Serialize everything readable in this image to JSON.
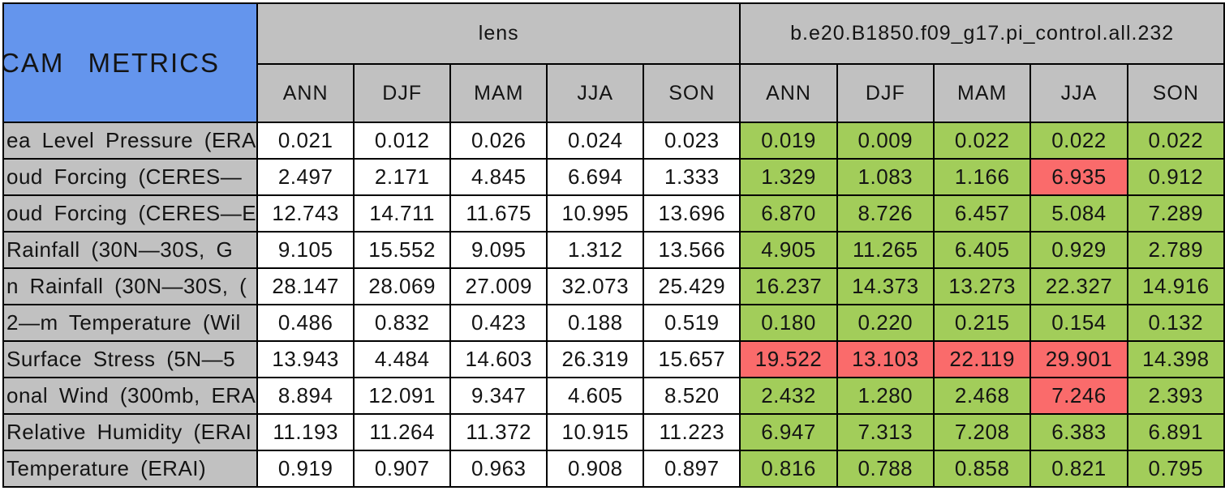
{
  "title": "CAM METRICS",
  "colors": {
    "header_blue": "#6495ED",
    "header_gray": "#C1C1C1",
    "better_green": "#A2CD5A",
    "worse_red": "#FA6B6B",
    "border_black": "#000000",
    "cell_white": "#FFFFFF"
  },
  "chart_data": {
    "type": "table",
    "title": "CAM METRICS",
    "column_groups": [
      "lens",
      "b.e20.B1850.f09_g17.pi_control.all.232"
    ],
    "season_columns": [
      "ANN",
      "DJF",
      "MAM",
      "JJA",
      "SON"
    ],
    "cell_color_meaning": {
      "green": "better than lens",
      "red": "worse than lens"
    },
    "rows": [
      {
        "label": "ea Level Pressure (ERA",
        "lens": [
          "0.021",
          "0.012",
          "0.026",
          "0.024",
          "0.023"
        ],
        "control": [
          "0.019",
          "0.009",
          "0.022",
          "0.022",
          "0.022"
        ],
        "control_status": [
          "better",
          "better",
          "better",
          "better",
          "better"
        ]
      },
      {
        "label": "oud Forcing (CERES—",
        "lens": [
          "2.497",
          "2.171",
          "4.845",
          "6.694",
          "1.333"
        ],
        "control": [
          "1.329",
          "1.083",
          "1.166",
          "6.935",
          "0.912"
        ],
        "control_status": [
          "better",
          "better",
          "better",
          "worse",
          "better"
        ]
      },
      {
        "label": "oud Forcing (CERES—E",
        "lens": [
          "12.743",
          "14.711",
          "11.675",
          "10.995",
          "13.696"
        ],
        "control": [
          "6.870",
          "8.726",
          "6.457",
          "5.084",
          "7.289"
        ],
        "control_status": [
          "better",
          "better",
          "better",
          "better",
          "better"
        ]
      },
      {
        "label": "Rainfall (30N—30S, G",
        "lens": [
          "9.105",
          "15.552",
          "9.095",
          "1.312",
          "13.566"
        ],
        "control": [
          "4.905",
          "11.265",
          "6.405",
          "0.929",
          "2.789"
        ],
        "control_status": [
          "better",
          "better",
          "better",
          "better",
          "better"
        ]
      },
      {
        "label": "n Rainfall (30N—30S, (",
        "lens": [
          "28.147",
          "28.069",
          "27.009",
          "32.073",
          "25.429"
        ],
        "control": [
          "16.237",
          "14.373",
          "13.273",
          "22.327",
          "14.916"
        ],
        "control_status": [
          "better",
          "better",
          "better",
          "better",
          "better"
        ]
      },
      {
        "label": "2—m Temperature (Wil",
        "lens": [
          "0.486",
          "0.832",
          "0.423",
          "0.188",
          "0.519"
        ],
        "control": [
          "0.180",
          "0.220",
          "0.215",
          "0.154",
          "0.132"
        ],
        "control_status": [
          "better",
          "better",
          "better",
          "better",
          "better"
        ]
      },
      {
        "label": "Surface Stress (5N—5",
        "lens": [
          "13.943",
          "4.484",
          "14.603",
          "26.319",
          "15.657"
        ],
        "control": [
          "19.522",
          "13.103",
          "22.119",
          "29.901",
          "14.398"
        ],
        "control_status": [
          "worse",
          "worse",
          "worse",
          "worse",
          "better"
        ]
      },
      {
        "label": "onal Wind (300mb, ERA",
        "lens": [
          "8.894",
          "12.091",
          "9.347",
          "4.605",
          "8.520"
        ],
        "control": [
          "2.432",
          "1.280",
          "2.468",
          "7.246",
          "2.393"
        ],
        "control_status": [
          "better",
          "better",
          "better",
          "worse",
          "better"
        ]
      },
      {
        "label": "Relative Humidity (ERAI",
        "lens": [
          "11.193",
          "11.264",
          "11.372",
          "10.915",
          "11.223"
        ],
        "control": [
          "6.947",
          "7.313",
          "7.208",
          "6.383",
          "6.891"
        ],
        "control_status": [
          "better",
          "better",
          "better",
          "better",
          "better"
        ]
      },
      {
        "label": "Temperature (ERAI)",
        "lens": [
          "0.919",
          "0.907",
          "0.963",
          "0.908",
          "0.897"
        ],
        "control": [
          "0.816",
          "0.788",
          "0.858",
          "0.821",
          "0.795"
        ],
        "control_status": [
          "better",
          "better",
          "better",
          "better",
          "better"
        ]
      }
    ]
  }
}
